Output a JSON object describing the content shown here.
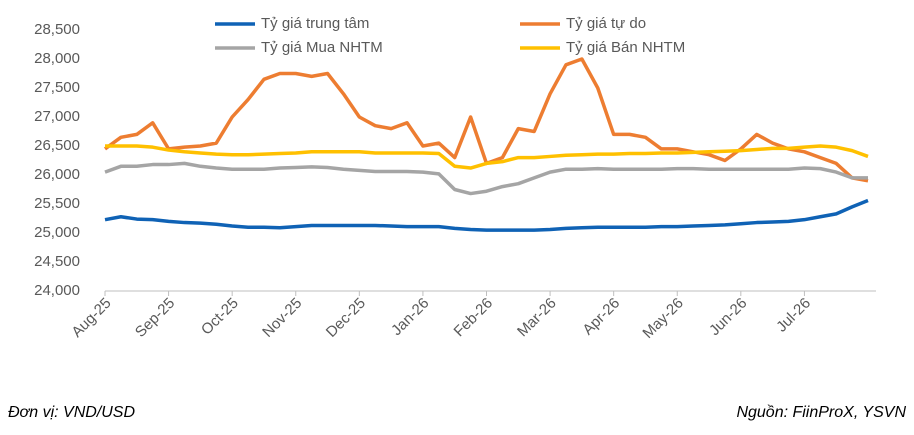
{
  "chart_data": {
    "type": "line",
    "categories": [
      "Aug-25",
      null,
      null,
      null,
      "Sep-25",
      null,
      null,
      null,
      "Oct-25",
      null,
      null,
      null,
      "Nov-25",
      null,
      null,
      null,
      "Dec-25",
      null,
      null,
      null,
      "Jan-26",
      null,
      null,
      null,
      "Feb-26",
      null,
      null,
      null,
      "Mar-26",
      null,
      null,
      null,
      "Apr-26",
      null,
      null,
      null,
      "May-26",
      null,
      null,
      null,
      "Jun-26",
      null,
      null,
      null,
      "Jul-26",
      null,
      null,
      null,
      null
    ],
    "series": [
      {
        "name": "Tỷ giá trung tâm",
        "color": "#0f62b5",
        "values": [
          25230,
          25280,
          25240,
          25230,
          25200,
          25180,
          25170,
          25150,
          25120,
          25100,
          25100,
          25090,
          25110,
          25130,
          25130,
          25130,
          25130,
          25130,
          25120,
          25110,
          25110,
          25110,
          25080,
          25060,
          25050,
          25050,
          25050,
          25050,
          25060,
          25080,
          25090,
          25100,
          25100,
          25100,
          25100,
          25110,
          25110,
          25120,
          25130,
          25140,
          25160,
          25180,
          25190,
          25200,
          25230,
          25280,
          25330,
          25450,
          25560
        ]
      },
      {
        "name": "Tỷ giá tự do",
        "color": "#ed7d31",
        "values": [
          26450,
          26650,
          26700,
          26900,
          26450,
          26480,
          26500,
          26550,
          27000,
          27300,
          27650,
          27750,
          27750,
          27700,
          27750,
          27400,
          27000,
          26850,
          26800,
          26900,
          26500,
          26550,
          26300,
          27000,
          26200,
          26300,
          26800,
          26750,
          27400,
          27900,
          28000,
          27500,
          26700,
          26700,
          26650,
          26450,
          26450,
          26400,
          26350,
          26250,
          26450,
          26700,
          26550,
          26450,
          26400,
          26300,
          26200,
          25950,
          25900
        ]
      },
      {
        "name": "Tỷ giá Mua NHTM",
        "color": "#a5a5a5",
        "values": [
          26050,
          26150,
          26150,
          26180,
          26180,
          26200,
          26150,
          26120,
          26100,
          26100,
          26100,
          26120,
          26130,
          26140,
          26130,
          26100,
          26080,
          26060,
          26060,
          26060,
          26050,
          26020,
          25750,
          25680,
          25720,
          25800,
          25850,
          25950,
          26050,
          26100,
          26100,
          26110,
          26100,
          26100,
          26100,
          26100,
          26110,
          26110,
          26100,
          26100,
          26100,
          26100,
          26100,
          26100,
          26120,
          26110,
          26050,
          25950,
          25950
        ]
      },
      {
        "name": "Tỷ giá Bán NHTM",
        "color": "#ffc000",
        "values": [
          26500,
          26500,
          26500,
          26480,
          26430,
          26400,
          26380,
          26360,
          26350,
          26350,
          26360,
          26370,
          26380,
          26400,
          26400,
          26400,
          26400,
          26380,
          26380,
          26380,
          26380,
          26370,
          26150,
          26120,
          26200,
          26230,
          26300,
          26300,
          26320,
          26340,
          26350,
          26360,
          26360,
          26370,
          26370,
          26380,
          26380,
          26390,
          26400,
          26410,
          26420,
          26440,
          26460,
          26460,
          26480,
          26500,
          26480,
          26420,
          26320
        ]
      }
    ],
    "ylim": [
      24000,
      28500
    ],
    "yticks": [
      {
        "value": 24000,
        "label": "24,000"
      },
      {
        "value": 24500,
        "label": "24,500"
      },
      {
        "value": 25000,
        "label": "25,000"
      },
      {
        "value": 25500,
        "label": "25,500"
      },
      {
        "value": 26000,
        "label": "26,000"
      },
      {
        "value": 26500,
        "label": "26,500"
      },
      {
        "value": 27000,
        "label": "27,000"
      },
      {
        "value": 27500,
        "label": "27,500"
      },
      {
        "value": 28000,
        "label": "28,000"
      },
      {
        "value": 28500,
        "label": "28,500"
      }
    ],
    "grid": false,
    "legend": "top",
    "annotations": [
      "Đơn vị: VND/USD",
      "Nguồn: FiinProX, YSVN"
    ]
  }
}
